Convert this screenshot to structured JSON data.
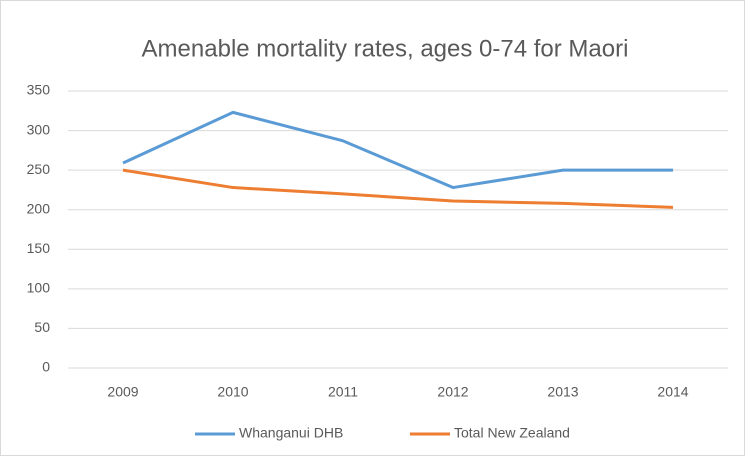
{
  "chart_data": {
    "type": "line",
    "title": "Amenable mortality rates, ages 0-74 for Maori",
    "categories": [
      "2009",
      "2010",
      "2011",
      "2012",
      "2013",
      "2014"
    ],
    "series": [
      {
        "name": "Whanganui DHB",
        "color": "#5b9bd5",
        "values": [
          259,
          323,
          287,
          228,
          250,
          250
        ]
      },
      {
        "name": "Total New Zealand",
        "color": "#ed7d31",
        "values": [
          250,
          228,
          220,
          211,
          208,
          203
        ]
      }
    ],
    "ylim": [
      0,
      350
    ],
    "yticks": [
      0,
      50,
      100,
      150,
      200,
      250,
      300,
      350
    ],
    "grid": true,
    "legend": "bottom"
  }
}
